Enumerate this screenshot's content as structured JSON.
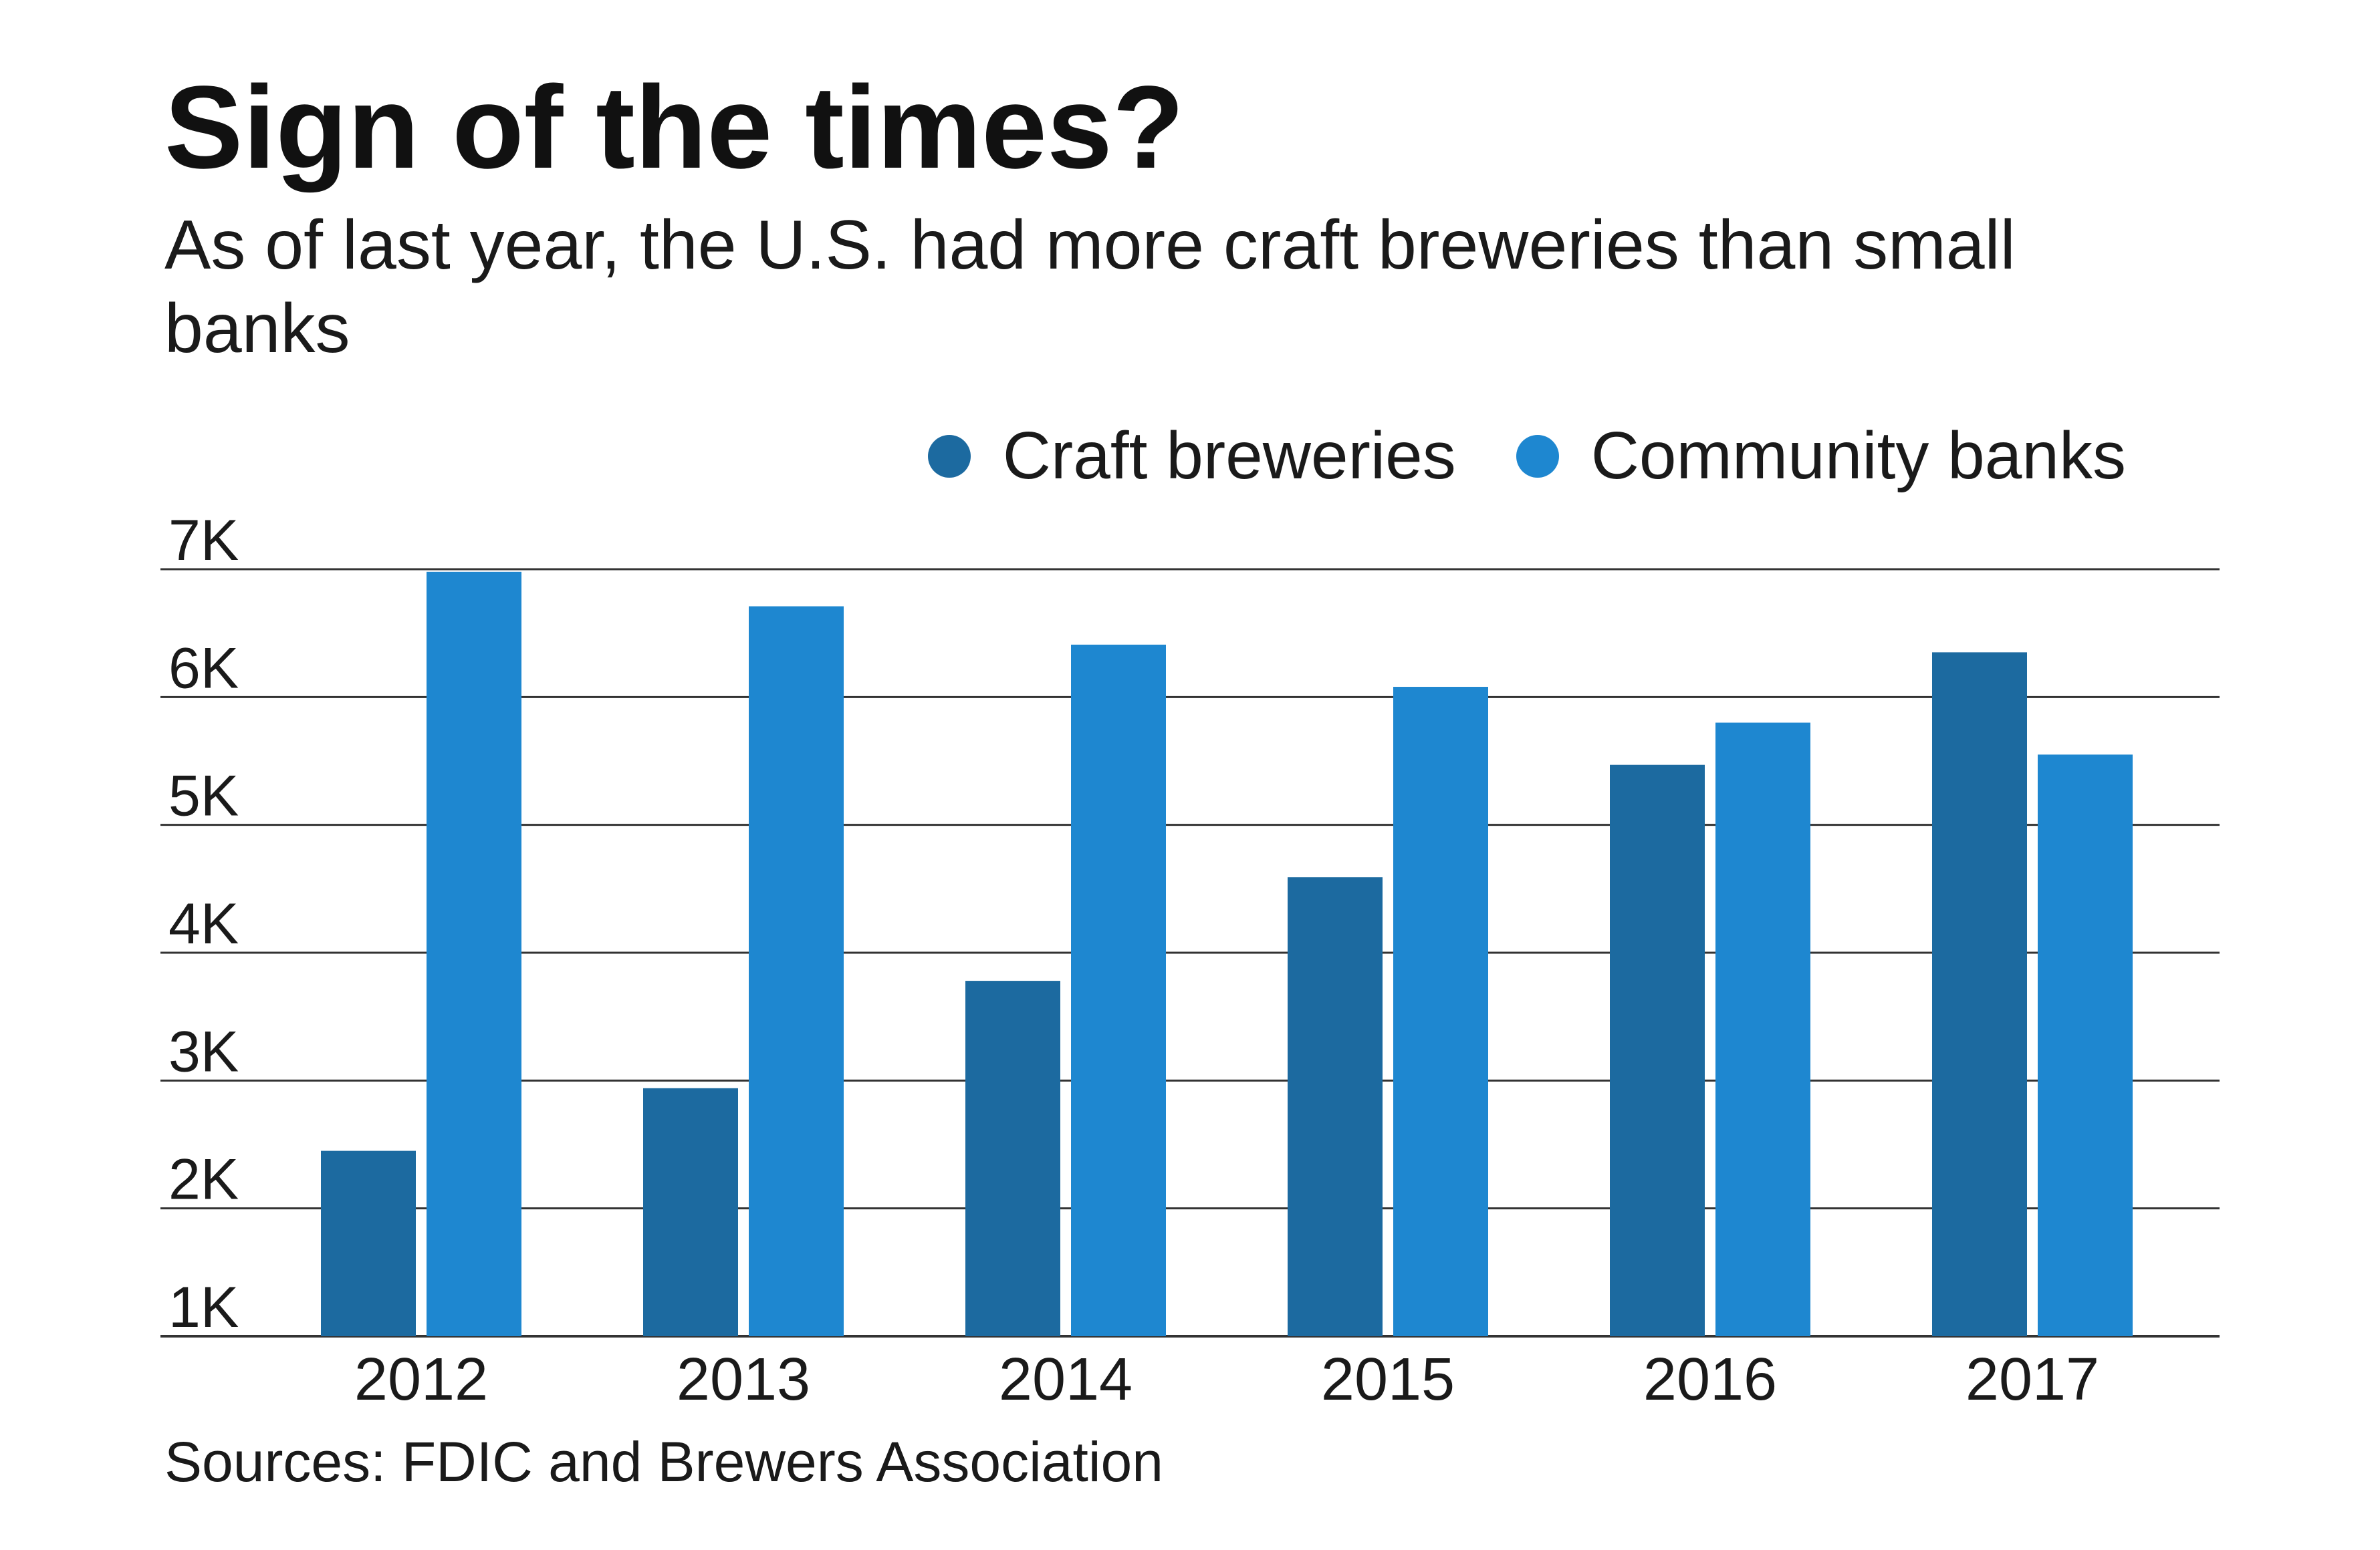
{
  "header": {
    "title": "Sign of the times?",
    "subtitle": "As of last year, the U.S. had more craft breweries than small banks"
  },
  "footer": {
    "source": "Sources: FDIC and Brewers Association"
  },
  "colors": {
    "craft_breweries": "#1c6aa0",
    "community_banks": "#1e87d0",
    "gridline": "#333333"
  },
  "chart_data": {
    "type": "bar",
    "title": "Sign of the times?",
    "subtitle": "As of last year, the U.S. had more craft breweries than small banks",
    "categories": [
      "2012",
      "2013",
      "2014",
      "2015",
      "2016",
      "2017"
    ],
    "series": [
      {
        "name": "Craft breweries",
        "values": [
          2450,
          2940,
          3780,
          4590,
          5470,
          6350
        ]
      },
      {
        "name": "Community banks",
        "values": [
          6980,
          6710,
          6410,
          6080,
          5800,
          5550
        ]
      }
    ],
    "ylim": [
      1000,
      7000
    ],
    "yticks": [
      1000,
      2000,
      3000,
      4000,
      5000,
      6000,
      7000
    ],
    "ytick_labels": [
      "1K",
      "2K",
      "3K",
      "4K",
      "5K",
      "6K",
      "7K"
    ],
    "xlabel": "",
    "ylabel": "",
    "grid": true,
    "legend_position": "top-right"
  }
}
